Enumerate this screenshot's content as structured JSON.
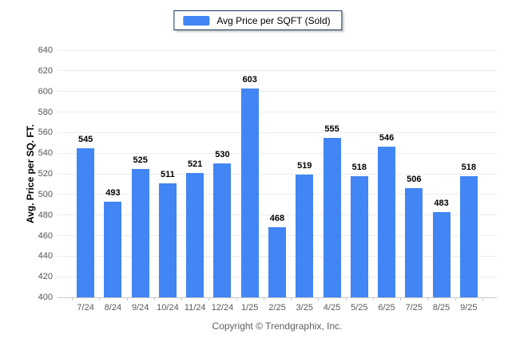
{
  "chart_data": {
    "type": "bar",
    "title": "",
    "legend_label": "Avg Price per SQFT (Sold)",
    "legend_position": "top-center",
    "ylabel": "Avg. Price per SQ. FT.",
    "xlabel": "",
    "categories": [
      "7/24",
      "8/24",
      "9/24",
      "10/24",
      "11/24",
      "12/24",
      "1/25",
      "2/25",
      "3/25",
      "4/25",
      "5/25",
      "6/25",
      "7/25",
      "8/25",
      "9/25"
    ],
    "values": [
      545,
      493,
      525,
      511,
      521,
      530,
      603,
      468,
      519,
      555,
      518,
      546,
      506,
      483,
      518
    ],
    "ylim": [
      400,
      640
    ],
    "y_ticks": [
      640,
      620,
      600,
      580,
      560,
      540,
      520,
      500,
      480,
      460,
      440,
      420,
      400
    ],
    "grid": true,
    "colors": {
      "bar": "#4285f4",
      "grid": "#ececec",
      "axis": "#c9c9c9",
      "tick_text": "#555555",
      "value_text": "#000000",
      "legend_border": "#17365d"
    },
    "footer": "Copyright © Trendgraphix, Inc."
  }
}
